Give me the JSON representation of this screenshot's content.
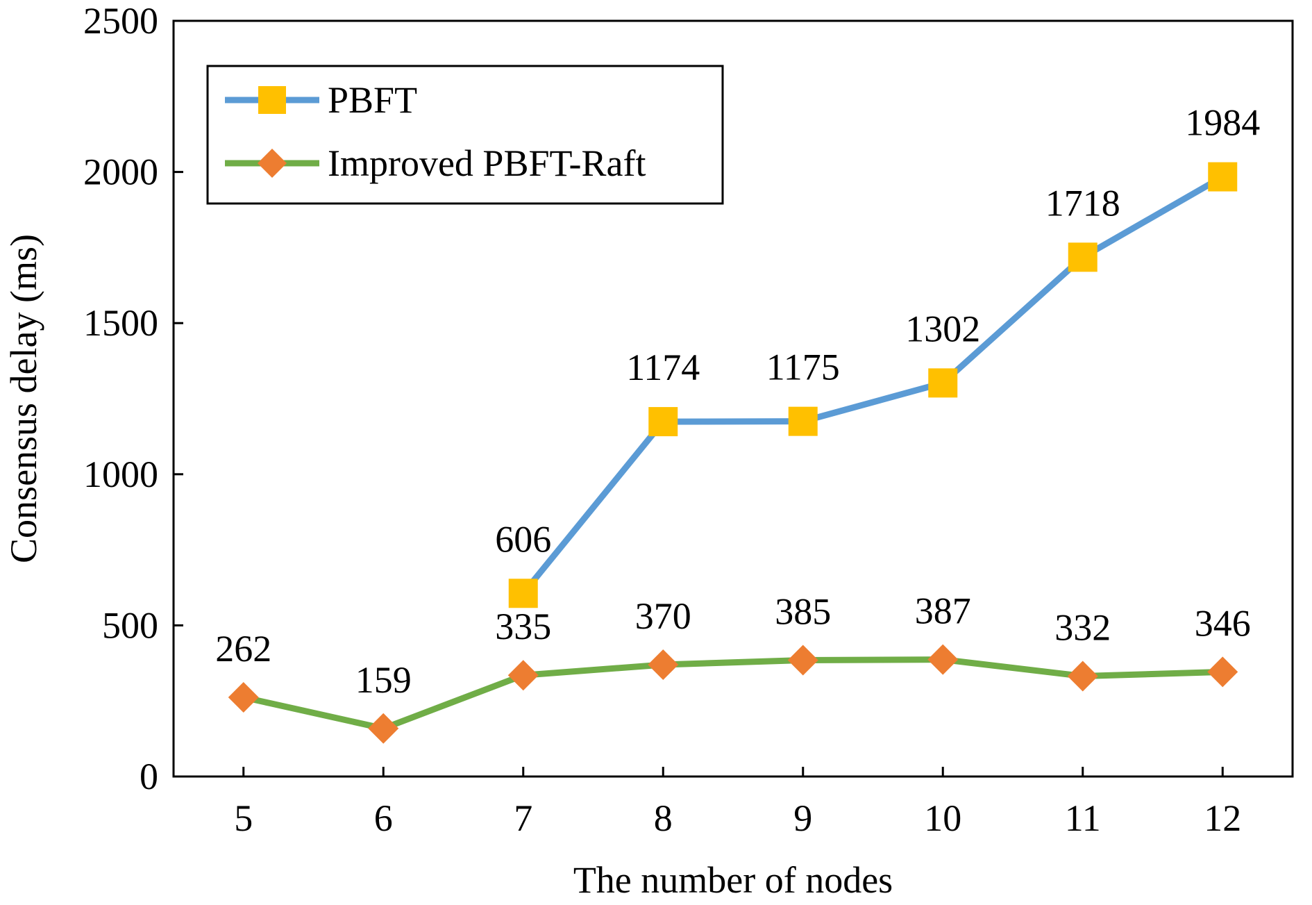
{
  "chart_data": {
    "type": "line",
    "xlabel": "The number of nodes",
    "ylabel": "Consensus delay (ms)",
    "x": [
      5,
      6,
      7,
      8,
      9,
      10,
      11,
      12
    ],
    "ylim": [
      0,
      2500
    ],
    "yticks": [
      0,
      500,
      1000,
      1500,
      2000,
      2500
    ],
    "grid": false,
    "legend_position": "top-left",
    "series": [
      {
        "name": "PBFT",
        "x": [
          7,
          8,
          9,
          10,
          11,
          12
        ],
        "values": [
          606,
          1174,
          1175,
          1302,
          1718,
          1984
        ],
        "line_color": "#5b9bd5",
        "marker": "square",
        "marker_color": "#ffc000"
      },
      {
        "name": "Improved PBFT-Raft",
        "x": [
          5,
          6,
          7,
          8,
          9,
          10,
          11,
          12
        ],
        "values": [
          262,
          159,
          335,
          370,
          385,
          387,
          332,
          346
        ],
        "line_color": "#70ad47",
        "marker": "diamond",
        "marker_color": "#ed7d31"
      }
    ]
  }
}
